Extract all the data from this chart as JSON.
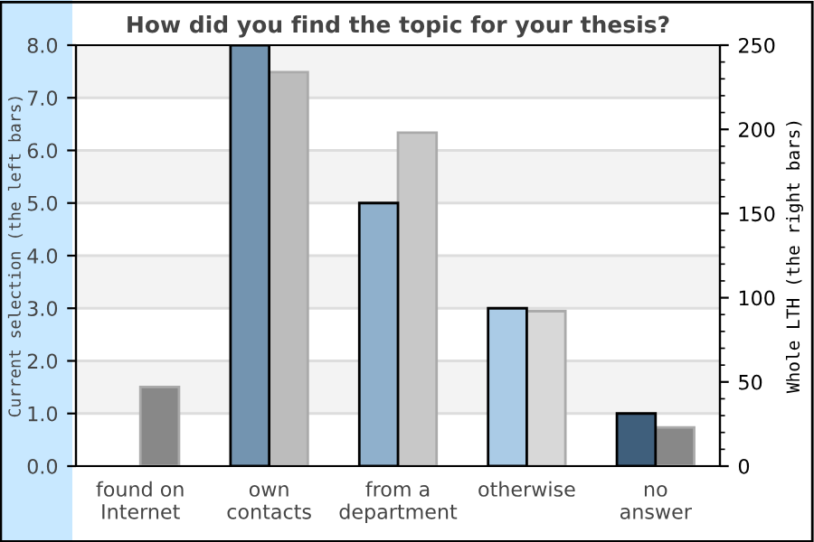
{
  "chart_data": {
    "type": "bar",
    "title": "How did you find the topic for your thesis?",
    "ylabel": "Current selection (the left bars)",
    "y2label": "Whole LTH (the right bars)",
    "categories": [
      "found on\nInternet",
      "own\ncontacts",
      "from a\ndepartment",
      "otherwise",
      "no\nanswer"
    ],
    "series": [
      {
        "colors": [
          "#7394b0",
          "#7394b0",
          "#8fb0cc",
          "#aacbe6",
          "#3f5f7c"
        ],
        "values": [
          0,
          8,
          5,
          3,
          1
        ]
      },
      {
        "axis": "y2",
        "colors": [
          "#888888",
          "#bcbcbc",
          "#c8c8c8",
          "#d8d8d8",
          "#888888"
        ],
        "values": [
          47,
          234,
          198,
          92,
          23
        ]
      }
    ],
    "ylim": [
      0,
      8
    ],
    "yticks": [
      {
        "value": 0,
        "label": "0.0"
      },
      {
        "value": 1,
        "label": "1.0"
      },
      {
        "value": 2,
        "label": "2.0"
      },
      {
        "value": 3,
        "label": "3.0"
      },
      {
        "value": 4,
        "label": "4.0"
      },
      {
        "value": 5,
        "label": "5.0"
      },
      {
        "value": 6,
        "label": "6.0"
      },
      {
        "value": 7,
        "label": "7.0"
      },
      {
        "value": 8,
        "label": "8.0"
      }
    ],
    "y2lim": [
      0,
      250
    ],
    "y2ticks": [
      0,
      50,
      100,
      150,
      200,
      250
    ],
    "grid": "y",
    "legend": false
  }
}
